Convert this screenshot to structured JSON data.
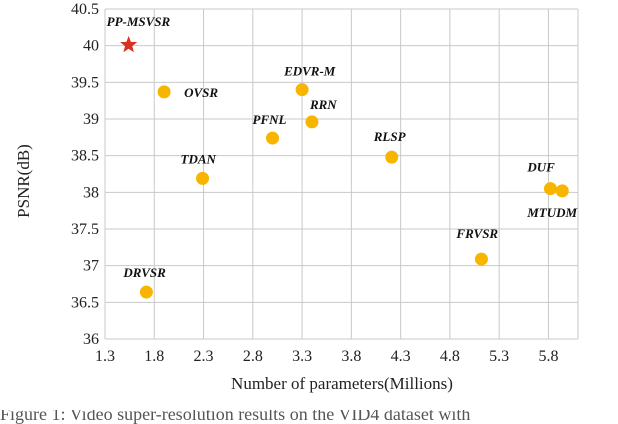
{
  "chart_data": {
    "type": "scatter",
    "xlabel": "Number of parameters(Millions)",
    "ylabel": "PSNR(dB)",
    "xlim": [
      1.3,
      6.1
    ],
    "ylim": [
      36,
      40.5
    ],
    "x_ticks": [
      "1.3",
      "1.8",
      "2.3",
      "2.8",
      "3.3",
      "3.8",
      "4.3",
      "4.8",
      "5.3",
      "5.8"
    ],
    "x_tick_values": [
      1.3,
      1.8,
      2.3,
      2.8,
      3.3,
      3.8,
      4.3,
      4.8,
      5.3,
      5.8
    ],
    "y_ticks": [
      "36",
      "36.5",
      "37",
      "37.5",
      "38",
      "38.5",
      "39",
      "39.5",
      "40",
      "40.5"
    ],
    "y_tick_values": [
      36,
      36.5,
      37,
      37.5,
      38,
      38.5,
      39,
      39.5,
      40,
      40.5
    ],
    "grid": true,
    "points": [
      {
        "label": "PP-MSVSR",
        "x": 1.54,
        "y": 40.01,
        "marker": "star",
        "color": "#d9301f"
      },
      {
        "label": "OVSR",
        "x": 1.9,
        "y": 39.37,
        "marker": "circle",
        "color": "#f7b500"
      },
      {
        "label": "EDVR-M",
        "x": 3.3,
        "y": 39.4,
        "marker": "circle",
        "color": "#f7b500"
      },
      {
        "label": "RRN",
        "x": 3.4,
        "y": 38.96,
        "marker": "circle",
        "color": "#f7b500"
      },
      {
        "label": "PFNL",
        "x": 3.0,
        "y": 38.74,
        "marker": "circle",
        "color": "#f7b500"
      },
      {
        "label": "RLSP",
        "x": 4.21,
        "y": 38.48,
        "marker": "circle",
        "color": "#f7b500"
      },
      {
        "label": "TDAN",
        "x": 2.29,
        "y": 38.19,
        "marker": "circle",
        "color": "#f7b500"
      },
      {
        "label": "DUF",
        "x": 5.82,
        "y": 38.05,
        "marker": "circle",
        "color": "#f7b500"
      },
      {
        "label": "MTUDM",
        "x": 5.94,
        "y": 38.02,
        "marker": "circle",
        "color": "#f7b500"
      },
      {
        "label": "FRVSR",
        "x": 5.12,
        "y": 37.09,
        "marker": "circle",
        "color": "#f7b500"
      },
      {
        "label": "DRVSR",
        "x": 1.72,
        "y": 36.64,
        "marker": "circle",
        "color": "#f7b500"
      }
    ]
  },
  "caption": "Figure 1: Video super-resolution results on the VID4 dataset with"
}
